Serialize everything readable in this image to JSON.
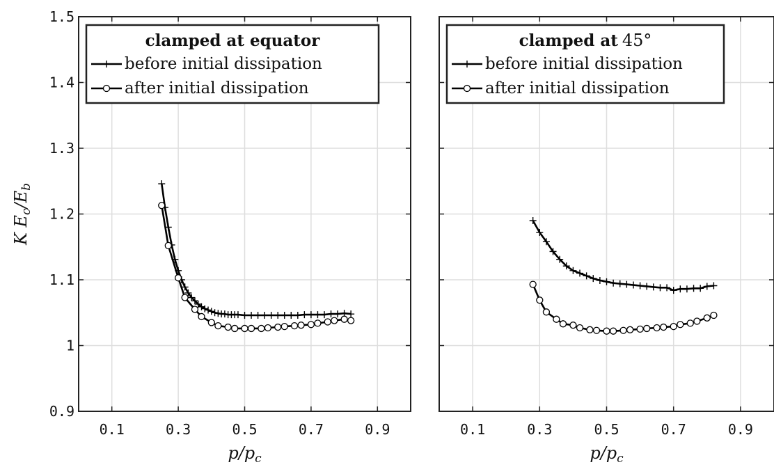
{
  "chart_data": [
    {
      "type": "line",
      "legend_title": "clamped at equator",
      "legend_title_suffix": "",
      "legend_position": "top-left",
      "xlabel": "p/p_c",
      "ylabel": "KE_c/E_b",
      "xlim": [
        0,
        1.0
      ],
      "ylim": [
        0.9,
        1.5
      ],
      "xticks": [
        0.1,
        0.3,
        0.5,
        0.7,
        0.9
      ],
      "xtick_labels": [
        "0.1",
        "0.3",
        "0.5",
        "0.7",
        "0.9"
      ],
      "yticks": [
        0.9,
        1.0,
        1.1,
        1.2,
        1.3,
        1.4,
        1.5
      ],
      "ytick_labels": [
        "0.9",
        "1",
        "1.1",
        "1.2",
        "1.3",
        "1.4",
        "1.5"
      ],
      "grid": true,
      "series": [
        {
          "name": "before initial dissipation",
          "marker": "plus",
          "x": [
            0.25,
            0.26,
            0.27,
            0.28,
            0.29,
            0.3,
            0.31,
            0.32,
            0.33,
            0.34,
            0.35,
            0.36,
            0.37,
            0.38,
            0.39,
            0.4,
            0.41,
            0.42,
            0.43,
            0.44,
            0.45,
            0.46,
            0.47,
            0.48,
            0.5,
            0.52,
            0.54,
            0.56,
            0.58,
            0.6,
            0.62,
            0.64,
            0.66,
            0.68,
            0.7,
            0.72,
            0.74,
            0.76,
            0.78,
            0.8,
            0.82
          ],
          "y": [
            1.246,
            1.21,
            1.18,
            1.153,
            1.131,
            1.114,
            1.1,
            1.089,
            1.08,
            1.073,
            1.068,
            1.063,
            1.059,
            1.056,
            1.054,
            1.052,
            1.05,
            1.049,
            1.048,
            1.048,
            1.047,
            1.047,
            1.047,
            1.047,
            1.046,
            1.046,
            1.046,
            1.046,
            1.046,
            1.046,
            1.046,
            1.046,
            1.046,
            1.047,
            1.047,
            1.047,
            1.047,
            1.048,
            1.048,
            1.049,
            1.048
          ]
        },
        {
          "name": "after initial dissipation",
          "marker": "circle",
          "x": [
            0.25,
            0.27,
            0.3,
            0.32,
            0.35,
            0.37,
            0.4,
            0.42,
            0.45,
            0.47,
            0.5,
            0.52,
            0.55,
            0.57,
            0.6,
            0.62,
            0.65,
            0.67,
            0.7,
            0.72,
            0.75,
            0.77,
            0.8,
            0.82
          ],
          "y": [
            1.213,
            1.152,
            1.103,
            1.073,
            1.055,
            1.044,
            1.035,
            1.03,
            1.028,
            1.026,
            1.026,
            1.026,
            1.026,
            1.027,
            1.028,
            1.029,
            1.03,
            1.031,
            1.032,
            1.034,
            1.036,
            1.038,
            1.04,
            1.038
          ]
        }
      ]
    },
    {
      "type": "line",
      "legend_title": "clamped at",
      "legend_title_suffix": "45°",
      "legend_position": "top-left",
      "xlabel": "p/p_c",
      "ylabel": "",
      "xlim": [
        0,
        1.0
      ],
      "ylim": [
        0.9,
        1.5
      ],
      "xticks": [
        0.1,
        0.3,
        0.5,
        0.7,
        0.9
      ],
      "xtick_labels": [
        "0.1",
        "0.3",
        "0.5",
        "0.7",
        "0.9"
      ],
      "yticks": [
        0.9,
        1.0,
        1.1,
        1.2,
        1.3,
        1.4,
        1.5
      ],
      "ytick_labels": [],
      "grid": true,
      "series": [
        {
          "name": "before initial dissipation",
          "marker": "plus",
          "x": [
            0.28,
            0.3,
            0.32,
            0.34,
            0.36,
            0.38,
            0.4,
            0.42,
            0.44,
            0.46,
            0.48,
            0.5,
            0.52,
            0.54,
            0.56,
            0.58,
            0.6,
            0.62,
            0.64,
            0.66,
            0.68,
            0.7,
            0.72,
            0.74,
            0.76,
            0.78,
            0.8,
            0.82
          ],
          "y": [
            1.19,
            1.172,
            1.158,
            1.143,
            1.131,
            1.121,
            1.114,
            1.11,
            1.106,
            1.102,
            1.099,
            1.097,
            1.095,
            1.094,
            1.093,
            1.092,
            1.091,
            1.09,
            1.089,
            1.088,
            1.088,
            1.084,
            1.086,
            1.086,
            1.087,
            1.087,
            1.09,
            1.091
          ]
        },
        {
          "name": "after initial dissipation",
          "marker": "circle",
          "x": [
            0.28,
            0.3,
            0.32,
            0.35,
            0.37,
            0.4,
            0.42,
            0.45,
            0.47,
            0.5,
            0.52,
            0.55,
            0.57,
            0.6,
            0.62,
            0.65,
            0.67,
            0.7,
            0.72,
            0.75,
            0.77,
            0.8,
            0.82
          ],
          "y": [
            1.093,
            1.069,
            1.051,
            1.04,
            1.033,
            1.031,
            1.027,
            1.024,
            1.023,
            1.022,
            1.022,
            1.023,
            1.024,
            1.025,
            1.026,
            1.027,
            1.028,
            1.029,
            1.032,
            1.034,
            1.037,
            1.042,
            1.046
          ]
        }
      ]
    }
  ]
}
